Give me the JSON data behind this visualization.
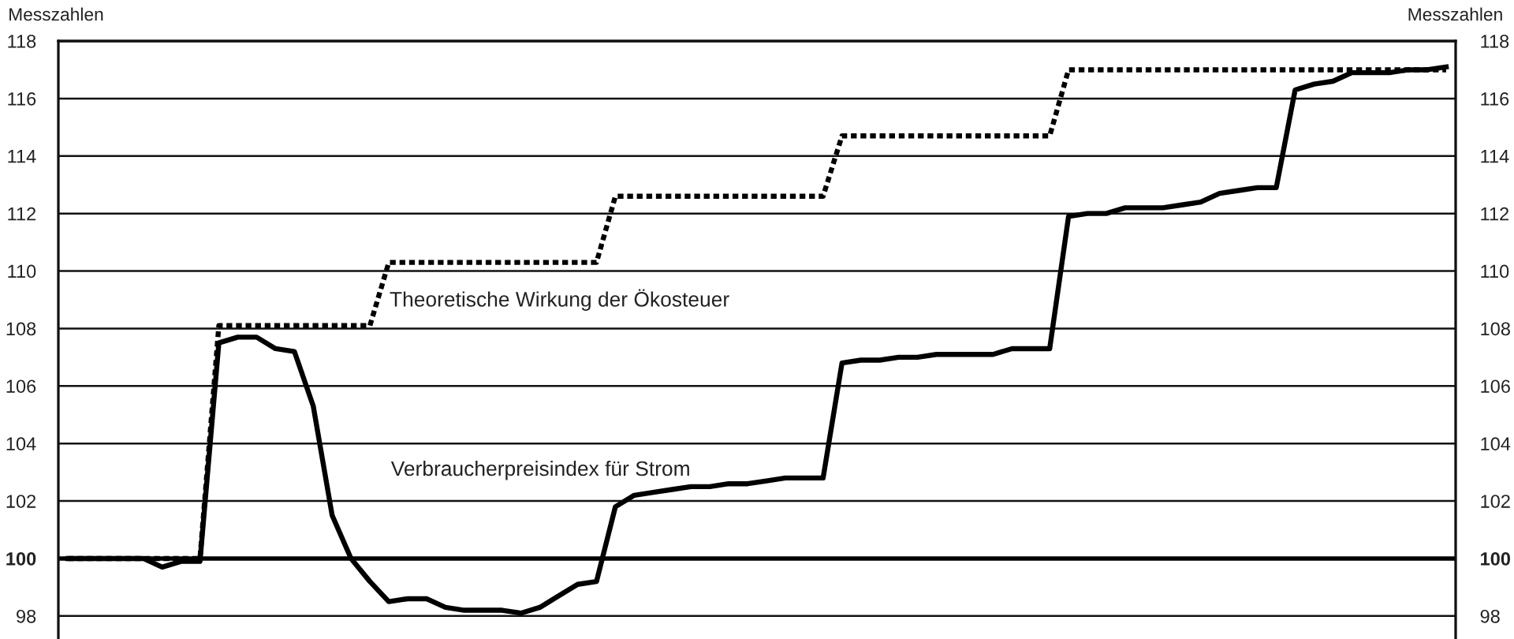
{
  "chart_data": {
    "type": "line",
    "ylabel": "Messzahlen",
    "y2label": "Messzahlen",
    "categories": [
      null,
      null,
      null,
      null,
      null,
      null,
      null,
      null,
      null,
      null,
      null,
      null,
      null,
      null,
      null,
      null,
      null,
      null,
      null,
      null,
      null,
      null,
      null,
      null,
      null,
      null,
      null,
      null,
      null,
      null,
      null,
      null,
      null,
      null,
      null,
      null,
      null,
      null,
      null,
      null,
      null,
      null,
      null,
      null,
      null,
      null,
      null,
      null,
      null,
      null,
      null,
      null,
      null,
      null,
      null,
      null,
      null,
      null,
      null,
      null,
      null,
      null,
      null,
      null,
      null,
      null,
      null,
      null,
      null,
      null,
      null,
      null,
      null,
      null
    ],
    "series": [
      {
        "name": "Theoretische Wirkung der Ökosteuer",
        "color": "#000000",
        "line_style": "dotted",
        "values": [
          100,
          100,
          100,
          100,
          100,
          100,
          100,
          100,
          108.1,
          108.1,
          108.1,
          108.1,
          108.1,
          108.1,
          108.1,
          108.1,
          108.1,
          110.3,
          110.3,
          110.3,
          110.3,
          110.3,
          110.3,
          110.3,
          110.3,
          110.3,
          110.3,
          110.3,
          110.3,
          112.6,
          112.6,
          112.6,
          112.6,
          112.6,
          112.6,
          112.6,
          112.6,
          112.6,
          112.6,
          112.6,
          112.6,
          114.7,
          114.7,
          114.7,
          114.7,
          114.7,
          114.7,
          114.7,
          114.7,
          114.7,
          114.7,
          114.7,
          114.7,
          117.0,
          117.0,
          117.0,
          117.0,
          117.0,
          117.0,
          117.0,
          117.0,
          117.0,
          117.0,
          117.0,
          117.0,
          117.0,
          117.0,
          117.0,
          117.0,
          117.0,
          117.0,
          117.0,
          117.0,
          117.0
        ]
      },
      {
        "name": "Verbraucherpreisindex für Strom",
        "color": "#000000",
        "line_style": "solid",
        "values": [
          100,
          100,
          100,
          100,
          100,
          99.7,
          99.9,
          99.9,
          107.5,
          107.7,
          107.7,
          107.3,
          107.2,
          105.3,
          101.5,
          100.0,
          99.2,
          98.5,
          98.6,
          98.6,
          98.3,
          98.2,
          98.2,
          98.2,
          98.1,
          98.3,
          98.7,
          99.1,
          99.2,
          101.8,
          102.2,
          102.3,
          102.4,
          102.5,
          102.5,
          102.6,
          102.6,
          102.7,
          102.8,
          102.8,
          102.8,
          106.8,
          106.9,
          106.9,
          107.0,
          107.0,
          107.1,
          107.1,
          107.1,
          107.1,
          107.3,
          107.3,
          107.3,
          111.9,
          112.0,
          112.0,
          112.2,
          112.2,
          112.2,
          112.3,
          112.4,
          112.7,
          112.8,
          112.9,
          112.9,
          116.3,
          116.5,
          116.6,
          116.9,
          116.9,
          116.9,
          117.0,
          117.0,
          117.1
        ]
      }
    ],
    "ylim": [
      97.2,
      118
    ],
    "yticks": [
      98,
      100,
      102,
      104,
      106,
      108,
      110,
      112,
      114,
      116,
      118
    ],
    "y2lim": [
      97.2,
      118
    ],
    "y2ticks": [
      98,
      100,
      102,
      104,
      106,
      108,
      110,
      112,
      114,
      116,
      118
    ],
    "ref_lines": [
      {
        "axis": "y",
        "value": 100
      }
    ],
    "grid": "y",
    "tick_labels": "y"
  }
}
